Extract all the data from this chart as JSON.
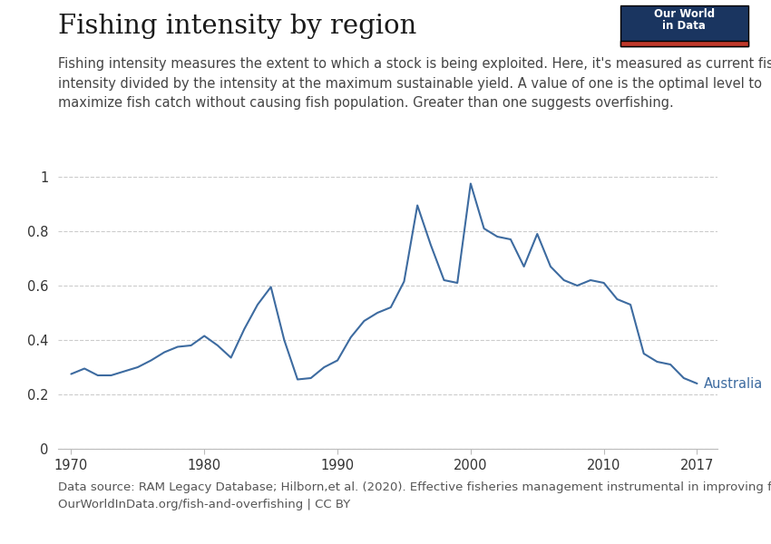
{
  "title": "Fishing intensity by region",
  "subtitle": "Fishing intensity measures the extent to which a stock is being exploited. Here, it's measured as current fishing\nintensity divided by the intensity at the maximum sustainable yield. A value of one is the optimal level to\nmaximize fish catch without causing fish population. Greater than one suggests overfishing.",
  "source_line1": "Data source: RAM Legacy Database; Hilborn,et al. (2020). Effective fisheries management instrumental in improving fish stock status.",
  "source_line2": "OurWorldInData.org/fish-and-overfishing | CC BY",
  "line_color": "#3d6ba0",
  "label": "Australia",
  "years": [
    1970,
    1971,
    1972,
    1973,
    1974,
    1975,
    1976,
    1977,
    1978,
    1979,
    1980,
    1981,
    1982,
    1983,
    1984,
    1985,
    1986,
    1987,
    1988,
    1989,
    1990,
    1991,
    1992,
    1993,
    1994,
    1995,
    1996,
    1997,
    1998,
    1999,
    2000,
    2001,
    2002,
    2003,
    2004,
    2005,
    2006,
    2007,
    2008,
    2009,
    2010,
    2011,
    2012,
    2013,
    2014,
    2015,
    2016,
    2017
  ],
  "values": [
    0.275,
    0.295,
    0.27,
    0.27,
    0.285,
    0.3,
    0.325,
    0.355,
    0.375,
    0.38,
    0.415,
    0.38,
    0.335,
    0.44,
    0.53,
    0.595,
    0.4,
    0.255,
    0.26,
    0.3,
    0.325,
    0.41,
    0.47,
    0.5,
    0.52,
    0.615,
    0.895,
    0.75,
    0.62,
    0.61,
    0.975,
    0.81,
    0.78,
    0.77,
    0.67,
    0.79,
    0.67,
    0.62,
    0.6,
    0.62,
    0.61,
    0.55,
    0.53,
    0.35,
    0.32,
    0.31,
    0.26,
    0.24
  ],
  "xlim": [
    1969,
    2018.5
  ],
  "ylim": [
    0,
    1.05
  ],
  "yticks": [
    0,
    0.2,
    0.4,
    0.6,
    0.8,
    1.0
  ],
  "ytick_labels": [
    "0",
    "0.2",
    "0.4",
    "0.6",
    "0.8",
    "1"
  ],
  "xticks": [
    1970,
    1980,
    1990,
    2000,
    2010,
    2017
  ],
  "bg_color": "#ffffff",
  "grid_color": "#cccccc",
  "owid_box_bg": "#1a3560",
  "owid_box_red": "#c0392b",
  "title_fontsize": 21,
  "subtitle_fontsize": 10.5,
  "source_fontsize": 9.5,
  "tick_fontsize": 10.5,
  "label_fontsize": 10.5
}
